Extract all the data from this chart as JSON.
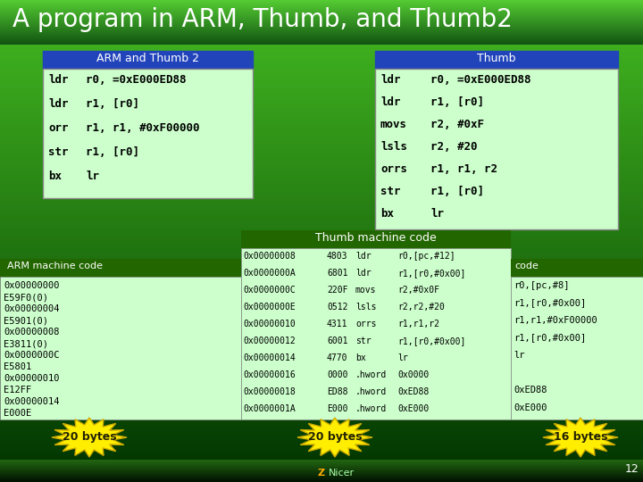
{
  "title": "A program in ARM, Thumb, and Thumb2",
  "arm_thumb2_header": "ARM and Thumb 2",
  "arm_thumb2_code": [
    [
      "ldr",
      "r0, =0xE000ED88"
    ],
    [
      "ldr",
      "r1, [r0]"
    ],
    [
      "orr",
      "r1, r1, #0xF00000"
    ],
    [
      "str",
      "r1, [r0]"
    ],
    [
      "bx",
      "lr"
    ]
  ],
  "thumb_header": "Thumb",
  "thumb_code": [
    [
      "ldr",
      "r0, =0xE000ED88"
    ],
    [
      "ldr",
      "r1, [r0]"
    ],
    [
      "movs",
      "r2, #0xF"
    ],
    [
      "lsls",
      "r2, #20"
    ],
    [
      "orrs",
      "r1, r1, r2"
    ],
    [
      "str",
      "r1, [r0]"
    ],
    [
      "bx",
      "lr"
    ]
  ],
  "arm_machine_label": "ARM machine code",
  "arm_machine_rows": [
    [
      "0x00000000",
      "E59F0(0)"
    ],
    [
      "0x00000004",
      "E5901(0)"
    ],
    [
      "0x00000008",
      "E3811(0)"
    ],
    [
      "0x0000000C",
      "E5801"
    ],
    [
      "0x00000010",
      "E12FF"
    ],
    [
      "0x00000014",
      "E000E"
    ]
  ],
  "arm_badge": "20 bytes",
  "thumb_machine_label": "Thumb machine code",
  "thumb_machine_rows": [
    [
      "0x00000008",
      "4803",
      "ldr",
      "r0,[pc,#12]"
    ],
    [
      "0x0000000A",
      "6801",
      "ldr",
      "r1,[r0,#0x00]"
    ],
    [
      "0x0000000C",
      "220F",
      "movs",
      "r2,#0x0F"
    ],
    [
      "0x0000000E",
      "0512",
      "lsls",
      "r2,r2,#20"
    ],
    [
      "0x00000010",
      "4311",
      "orrs",
      "r1,r1,r2"
    ],
    [
      "0x00000012",
      "6001",
      "str",
      "r1,[r0,#0x00]"
    ],
    [
      "0x00000014",
      "4770",
      "bx",
      "lr"
    ],
    [
      "0x00000016",
      "0000",
      ".hword",
      "0x0000"
    ],
    [
      "0x00000018",
      "ED88",
      ".hword",
      "0xED88"
    ],
    [
      "0x0000001A",
      "E000",
      ".hword",
      "0xE000"
    ]
  ],
  "thumb_badge": "20 bytes",
  "thumb2_machine_label": "code",
  "thumb2_right_col": [
    "r0,[pc,#8]",
    "r1,[r0,#0x00]",
    "r1,r1,#0xF00000",
    "r1,[r0,#0x00]",
    "lr",
    "",
    "0xED88",
    "0xE000"
  ],
  "thumb2_badge": "16 bytes",
  "footer_text": "12",
  "footer_logo": "ZNicer"
}
